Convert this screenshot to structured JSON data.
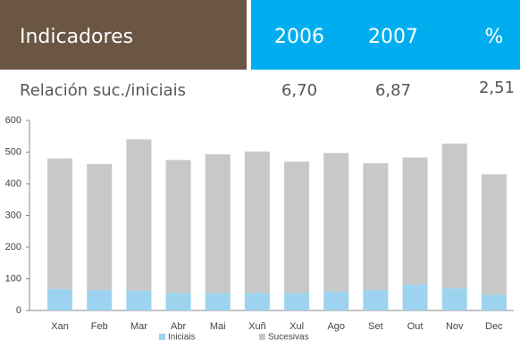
{
  "table": {
    "header": [
      "Indicadores",
      "2006",
      "2007",
      "%"
    ],
    "rows": [
      [
        "Relación suc./iniciais",
        "6,70",
        "6,87",
        "2,51"
      ]
    ]
  },
  "chart_data": {
    "type": "bar",
    "stacked": true,
    "categories": [
      "Xan",
      "Feb",
      "Mar",
      "Abr",
      "Mai",
      "Xuñ",
      "Xul",
      "Ago",
      "Set",
      "Out",
      "Nov",
      "Dec"
    ],
    "series": [
      {
        "name": "Iniciais",
        "color": "#9dd3ee",
        "values": [
          68,
          65,
          63,
          55,
          55,
          55,
          55,
          60,
          65,
          82,
          70,
          50
        ]
      },
      {
        "name": "Sucesivas",
        "color": "#c8c8c8",
        "values": [
          412,
          397,
          477,
          420,
          438,
          447,
          415,
          437,
          400,
          401,
          457,
          380
        ]
      }
    ],
    "ylim": [
      0,
      600
    ],
    "yticks": [
      0,
      100,
      200,
      300,
      400,
      500,
      600
    ],
    "legend": "bottom"
  }
}
